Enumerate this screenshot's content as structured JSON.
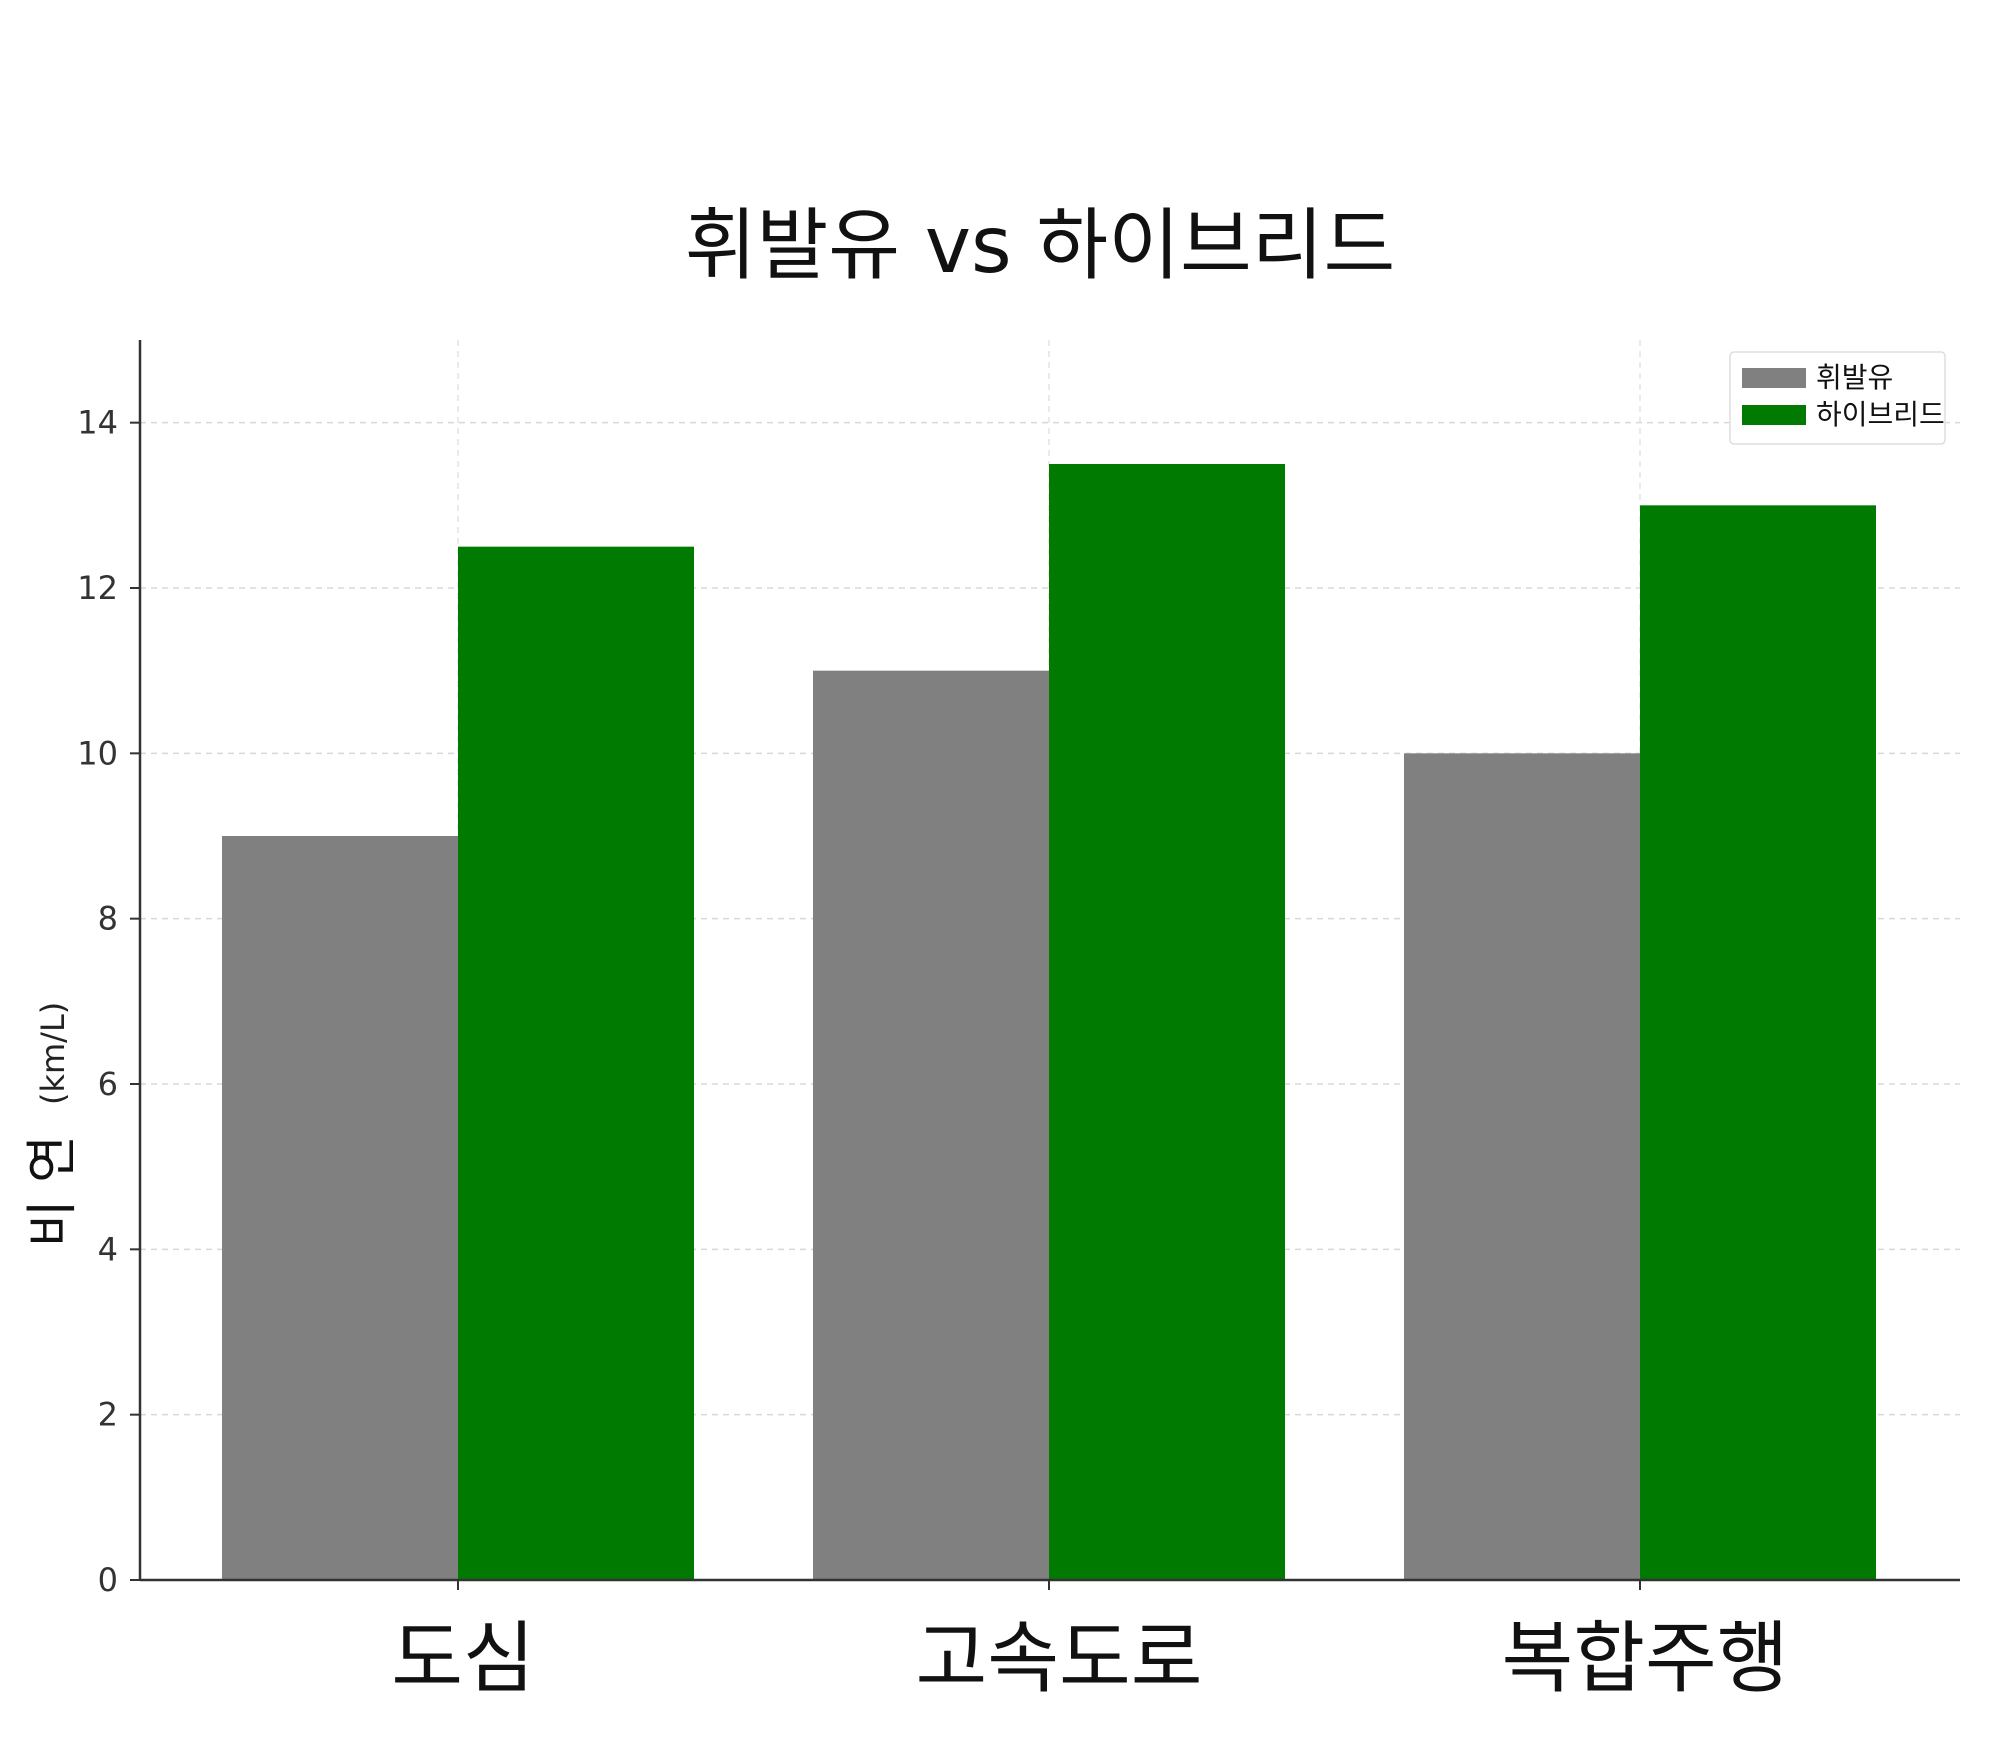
{
  "chart_data": {
    "type": "bar",
    "title": "휘발유 vs 하이브리드",
    "xlabel": "",
    "ylabel": "비 연",
    "ylabel_unit": "(km/L)",
    "categories": [
      "도심",
      "고속도로",
      "복합주행"
    ],
    "series": [
      {
        "name": "휘발유",
        "values": [
          9,
          11,
          10
        ],
        "color": "#808080"
      },
      {
        "name": "하이브리드",
        "values": [
          12.5,
          13.5,
          13
        ],
        "color": "#007a00"
      }
    ],
    "ylim": [
      0,
      15
    ],
    "yticks": [
      0,
      2,
      4,
      6,
      8,
      10,
      12,
      14
    ],
    "grid": true,
    "legend_position": "top-right"
  }
}
